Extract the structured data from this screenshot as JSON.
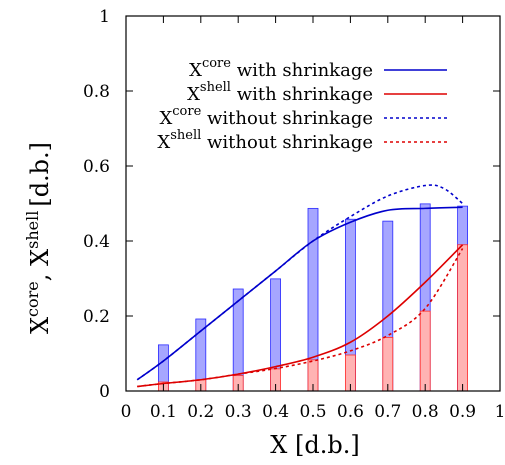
{
  "chart_data": {
    "type": "bar+line",
    "x_ticks": [
      "0",
      "0.1",
      "0.2",
      "0.3",
      "0.4",
      "0.5",
      "0.6",
      "0.7",
      "0.8",
      "0.9",
      "1"
    ],
    "y_ticks": [
      "0",
      "0.2",
      "0.4",
      "0.6",
      "0.8",
      "1"
    ],
    "xlim": [
      0,
      1
    ],
    "ylim": [
      0,
      1
    ],
    "xlabel": "X [d.b.]",
    "ylabel": {
      "left": "X",
      "left_sup": "core",
      "sep": ", X",
      "right_sup": "shell",
      "unit": "[d.b.]"
    },
    "legend": [
      {
        "base": "X",
        "sup": "core",
        "text": " with shrinkage",
        "color": "#0000cc",
        "dash": "solid"
      },
      {
        "base": "X",
        "sup": "shell",
        "text": " with shrinkage",
        "color": "#dd0000",
        "dash": "solid"
      },
      {
        "base": "X",
        "sup": "core",
        "text": " without shrinkage",
        "color": "#0000cc",
        "dash": "dotted"
      },
      {
        "base": "X",
        "sup": "shell",
        "text": " without shrinkage",
        "color": "#dd0000",
        "dash": "dotted"
      }
    ],
    "bars": {
      "x": [
        0.1,
        0.2,
        0.3,
        0.4,
        0.5,
        0.6,
        0.7,
        0.8,
        0.9
      ],
      "core": [
        0.123,
        0.192,
        0.272,
        0.299,
        0.487,
        0.458,
        0.453,
        0.499,
        0.493
      ],
      "shell": [
        0.024,
        0.03,
        0.041,
        0.059,
        0.083,
        0.096,
        0.143,
        0.213,
        0.39
      ],
      "core_color": "#a6a6ff",
      "shell_color": "#ffb3b3"
    },
    "series": [
      {
        "name": "core_with",
        "color": "#0000cc",
        "dash": "solid",
        "x": [
          0.03,
          0.1,
          0.2,
          0.3,
          0.4,
          0.5,
          0.6,
          0.7,
          0.8,
          0.9
        ],
        "y": [
          0.03,
          0.08,
          0.16,
          0.24,
          0.32,
          0.4,
          0.45,
          0.482,
          0.487,
          0.49
        ]
      },
      {
        "name": "shell_with",
        "color": "#dd0000",
        "dash": "solid",
        "x": [
          0.03,
          0.1,
          0.2,
          0.3,
          0.4,
          0.5,
          0.6,
          0.7,
          0.8,
          0.9
        ],
        "y": [
          0.012,
          0.02,
          0.03,
          0.045,
          0.065,
          0.09,
          0.13,
          0.2,
          0.29,
          0.39
        ]
      },
      {
        "name": "core_without",
        "color": "#0000cc",
        "dash": "dotted",
        "x": [
          0.03,
          0.1,
          0.2,
          0.3,
          0.4,
          0.5,
          0.6,
          0.7,
          0.8,
          0.85,
          0.9
        ],
        "y": [
          0.03,
          0.08,
          0.16,
          0.24,
          0.32,
          0.4,
          0.465,
          0.52,
          0.548,
          0.54,
          0.5
        ]
      },
      {
        "name": "shell_without",
        "color": "#dd0000",
        "dash": "dotted",
        "x": [
          0.03,
          0.1,
          0.2,
          0.3,
          0.4,
          0.5,
          0.6,
          0.7,
          0.8,
          0.9
        ],
        "y": [
          0.012,
          0.02,
          0.03,
          0.045,
          0.06,
          0.08,
          0.107,
          0.148,
          0.22,
          0.38
        ]
      }
    ]
  }
}
